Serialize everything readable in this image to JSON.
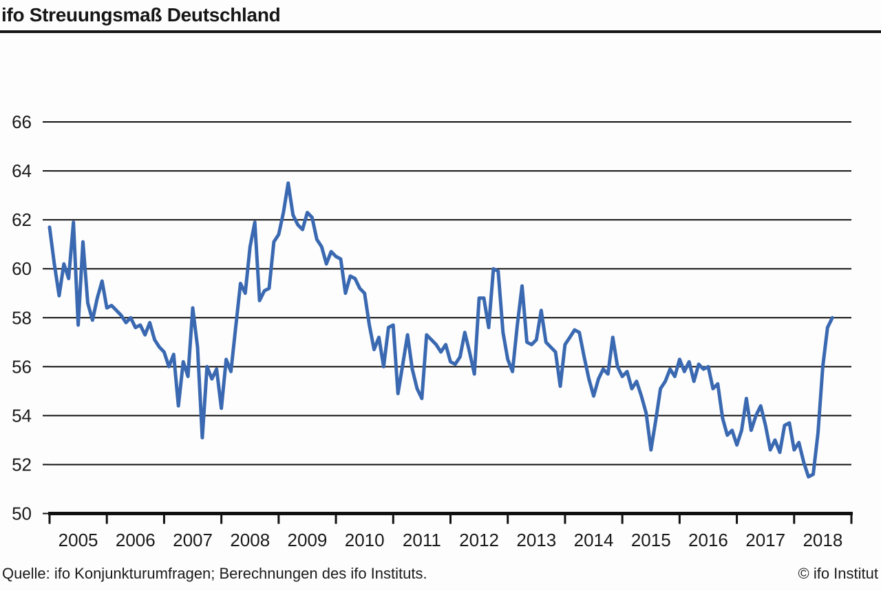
{
  "page": {
    "title": "ifo Streuungsmaß Deutschland",
    "source_note": "Quelle: ifo Konjunkturumfragen; Berechnungen des ifo Instituts.",
    "copyright": "© ifo Institut"
  },
  "chart_data": {
    "type": "line",
    "title": "ifo Streuungsmaß Deutschland",
    "grid": "horizontal",
    "legend": "none",
    "line_color": "#3a69b1",
    "axis_color": "#111111",
    "ylim": [
      50,
      66
    ],
    "y_ticks": [
      50,
      52,
      54,
      56,
      58,
      60,
      62,
      64,
      66
    ],
    "x_tick_labels": [
      "2005",
      "2006",
      "2007",
      "2008",
      "2009",
      "2010",
      "2011",
      "2012",
      "2013",
      "2014",
      "2015",
      "2016",
      "2017",
      "2018"
    ],
    "x_start_year": 2005,
    "x_total_years": 14,
    "points_per_year": 12,
    "series": [
      {
        "name": "ifo Streuungsmaß Deutschland",
        "start": "2005-01",
        "frequency": "monthly",
        "values": [
          61.7,
          60.2,
          58.9,
          60.2,
          59.6,
          61.9,
          57.7,
          61.1,
          58.6,
          57.9,
          58.8,
          59.5,
          58.4,
          58.5,
          58.3,
          58.1,
          57.8,
          58.0,
          57.6,
          57.7,
          57.3,
          57.8,
          57.1,
          56.8,
          56.6,
          56.0,
          56.5,
          54.4,
          56.2,
          55.6,
          58.4,
          56.8,
          53.1,
          56.0,
          55.5,
          55.9,
          54.3,
          56.3,
          55.8,
          57.6,
          59.4,
          59.0,
          60.9,
          61.9,
          58.7,
          59.1,
          59.2,
          61.1,
          61.4,
          62.3,
          63.5,
          62.2,
          61.8,
          61.6,
          62.3,
          62.1,
          61.2,
          60.9,
          60.2,
          60.7,
          60.5,
          60.4,
          59.0,
          59.7,
          59.6,
          59.2,
          59.0,
          57.7,
          56.7,
          57.2,
          56.0,
          57.6,
          57.7,
          54.9,
          56.1,
          57.3,
          55.9,
          55.1,
          54.7,
          57.3,
          57.1,
          56.9,
          56.6,
          56.9,
          56.2,
          56.1,
          56.4,
          57.4,
          56.6,
          55.7,
          58.8,
          58.8,
          57.6,
          60.0,
          59.9,
          57.4,
          56.3,
          55.8,
          57.7,
          59.3,
          57.0,
          56.9,
          57.1,
          58.3,
          57.0,
          56.8,
          56.6,
          55.2,
          56.9,
          57.2,
          57.5,
          57.4,
          56.4,
          55.5,
          54.8,
          55.5,
          55.9,
          55.7,
          57.2,
          56.0,
          55.6,
          55.8,
          55.1,
          55.4,
          54.8,
          54.1,
          52.6,
          53.8,
          55.1,
          55.4,
          55.9,
          55.6,
          56.3,
          55.8,
          56.2,
          55.4,
          56.1,
          55.9,
          56.0,
          55.1,
          55.3,
          53.9,
          53.2,
          53.4,
          52.8,
          53.4,
          54.7,
          53.4,
          54.0,
          54.4,
          53.6,
          52.6,
          53.0,
          52.5,
          53.6,
          53.7,
          52.6,
          52.9,
          52.1,
          51.5,
          51.6,
          53.3,
          56.0,
          57.6,
          58.0
        ]
      }
    ]
  }
}
